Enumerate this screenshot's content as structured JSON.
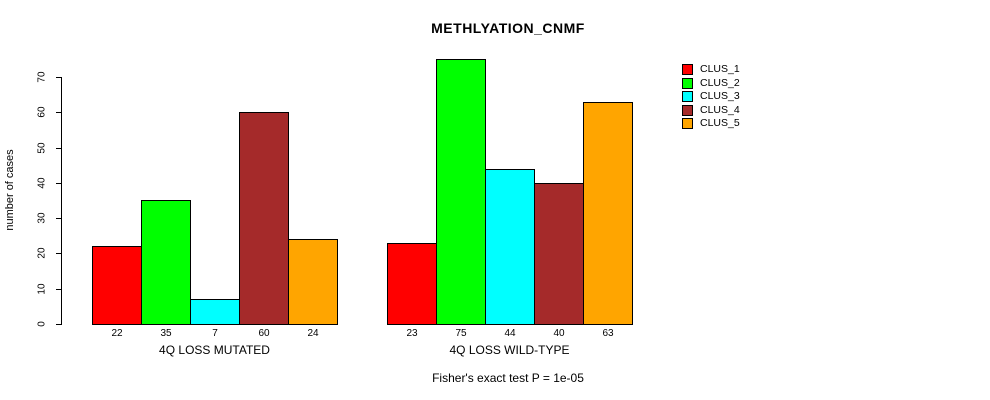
{
  "chart_data": {
    "type": "bar",
    "title": "METHLYATION_CNMF",
    "xlabel": "",
    "ylabel": "number of cases",
    "ylim": [
      0,
      70
    ],
    "yticks": [
      0,
      10,
      20,
      30,
      40,
      50,
      60,
      70
    ],
    "categories": [
      "4Q LOSS MUTATED",
      "4Q LOSS WILD-TYPE"
    ],
    "series": [
      {
        "name": "CLUS_1",
        "color": "#FF0000",
        "values": [
          22,
          23
        ]
      },
      {
        "name": "CLUS_2",
        "color": "#00FF00",
        "values": [
          35,
          75
        ]
      },
      {
        "name": "CLUS_3",
        "color": "#00FFFF",
        "values": [
          7,
          44
        ]
      },
      {
        "name": "CLUS_4",
        "color": "#A52A2A",
        "values": [
          60,
          40
        ]
      },
      {
        "name": "CLUS_5",
        "color": "#FFA500",
        "values": [
          24,
          63
        ]
      }
    ],
    "bar_value_labels": true,
    "annotation": "Fisher's exact test P = 1e-05",
    "legend_position": "right",
    "grid": false,
    "bar_border_color": "#000000",
    "background_color": "#FFFFFF",
    "text_color": "#000000"
  }
}
